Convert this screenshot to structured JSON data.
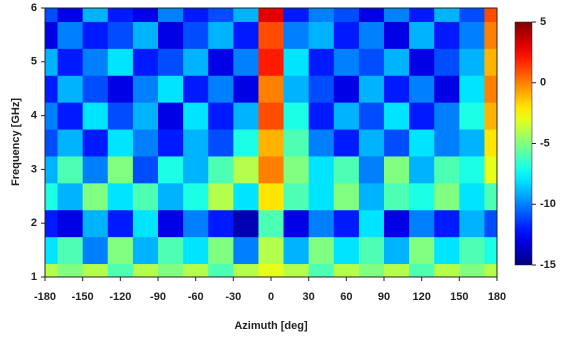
{
  "chart_data": {
    "type": "heatmap",
    "xlabel": "Azimuth [deg]",
    "ylabel": "Frequency [GHz]",
    "x": [
      -180,
      -160,
      -140,
      -120,
      -100,
      -80,
      -60,
      -40,
      -20,
      0,
      20,
      40,
      60,
      80,
      100,
      120,
      140,
      160,
      180
    ],
    "y": [
      1.0,
      1.5,
      2.0,
      2.5,
      3.0,
      3.5,
      4.0,
      4.5,
      5.0,
      5.5,
      6.0
    ],
    "values": [
      [
        -4,
        -5,
        -4,
        -6,
        -4,
        -5,
        -4,
        -6,
        -4,
        -3,
        -4,
        -6,
        -4,
        -5,
        -4,
        -6,
        -4,
        -5,
        -4
      ],
      [
        -8,
        -6,
        -10,
        -5,
        -9,
        -6,
        -8,
        -5,
        -10,
        -4,
        -9,
        -5,
        -8,
        -6,
        -9,
        -5,
        -8,
        -6,
        -7
      ],
      [
        -12,
        -13,
        -9,
        -12,
        -8,
        -13,
        -10,
        -12,
        -14,
        -6,
        -13,
        -10,
        -12,
        -8,
        -13,
        -10,
        -12,
        -9,
        -11
      ],
      [
        -7,
        -9,
        -5,
        -8,
        -6,
        -9,
        -7,
        -4,
        -8,
        -2,
        -6,
        -8,
        -5,
        -9,
        -6,
        -7,
        -5,
        -8,
        -6
      ],
      [
        -9,
        -6,
        -10,
        -5,
        -11,
        -7,
        -9,
        -6,
        -4,
        0,
        -5,
        -8,
        -6,
        -10,
        -5,
        -9,
        -6,
        -7,
        -3
      ],
      [
        -11,
        -9,
        -12,
        -8,
        -10,
        -12,
        -9,
        -11,
        -7,
        -1,
        -6,
        -10,
        -12,
        -9,
        -11,
        -8,
        -10,
        -9,
        -2
      ],
      [
        -10,
        -12,
        -8,
        -11,
        -9,
        -13,
        -8,
        -12,
        -9,
        1,
        -7,
        -12,
        -9,
        -11,
        -8,
        -12,
        -10,
        -7,
        -1
      ],
      [
        -12,
        -9,
        -11,
        -13,
        -10,
        -8,
        -12,
        -10,
        -13,
        0,
        -9,
        -11,
        -13,
        -9,
        -12,
        -10,
        -13,
        -8,
        0
      ],
      [
        -9,
        -12,
        -10,
        -8,
        -12,
        -11,
        -9,
        -13,
        -10,
        2,
        -8,
        -12,
        -10,
        -11,
        -9,
        -13,
        -11,
        -9,
        -1
      ],
      [
        -13,
        -10,
        -12,
        -11,
        -9,
        -13,
        -11,
        -9,
        -12,
        1,
        -10,
        -9,
        -12,
        -10,
        -13,
        -9,
        -12,
        -10,
        0
      ],
      [
        -11,
        -13,
        -9,
        -12,
        -13,
        -10,
        -12,
        -11,
        -9,
        3,
        -12,
        -10,
        -11,
        -13,
        -10,
        -12,
        -9,
        -11,
        1
      ]
    ],
    "colormap": "jet",
    "xlim": [
      -180,
      180
    ],
    "xticks": [
      -180,
      -150,
      -120,
      -90,
      -60,
      -30,
      0,
      30,
      60,
      90,
      120,
      150,
      180
    ],
    "ylim": [
      1,
      6
    ],
    "yticks": [
      1,
      2,
      3,
      4,
      5,
      6
    ],
    "clim": [
      -15,
      5
    ],
    "cticks": [
      5,
      0,
      -5,
      -10,
      -15
    ]
  }
}
